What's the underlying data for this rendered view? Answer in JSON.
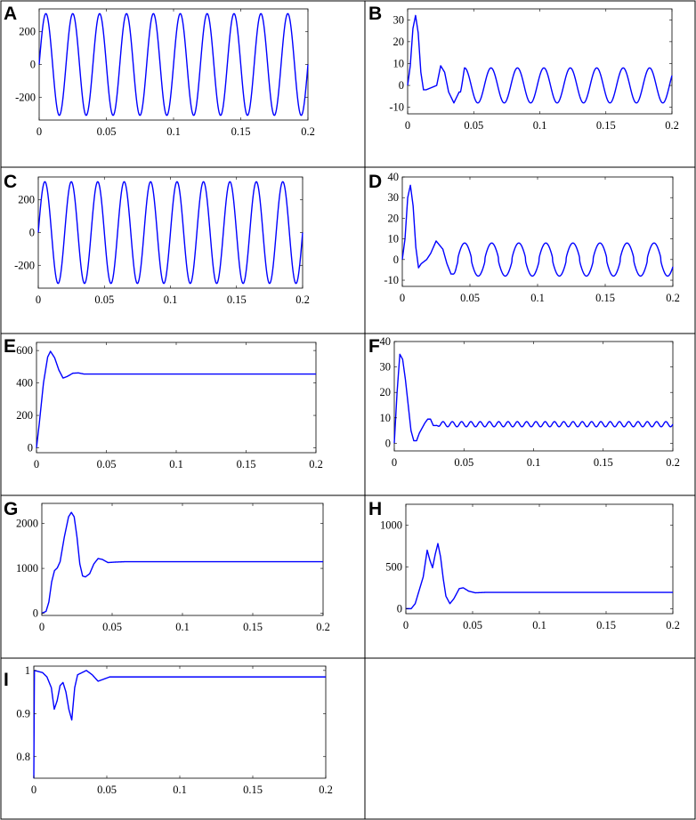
{
  "figure": {
    "line_color": "#0000ff"
  },
  "chart_data": [
    {
      "panel": "A",
      "type": "line",
      "x_ticks": [
        "0",
        "0.05",
        "0.1",
        "0.15",
        "0.2"
      ],
      "x_tick_values": [
        0,
        0.05,
        0.1,
        0.15,
        0.2
      ],
      "y_ticks": [
        "200",
        "0",
        "-200"
      ],
      "y_tick_values": [
        200,
        0,
        -200
      ],
      "xlim": [
        0,
        0.2
      ],
      "ylim": [
        -340,
        340
      ],
      "series": [
        {
          "waveform": "sine",
          "frequency_hz": 50,
          "amplitude": 311,
          "samples_x": [
            0,
            0.005,
            0.015,
            0.2
          ],
          "samples_y": [
            0,
            270,
            -311,
            0
          ]
        }
      ]
    },
    {
      "panel": "B",
      "type": "line",
      "x_ticks": [
        "0",
        "0.05",
        "0.1",
        "0.15",
        "0.2"
      ],
      "x_tick_values": [
        0,
        0.05,
        0.1,
        0.15,
        0.2
      ],
      "y_ticks": [
        "30",
        "20",
        "10",
        "0",
        "-10"
      ],
      "y_tick_values": [
        30,
        20,
        10,
        0,
        -10
      ],
      "xlim": [
        0,
        0.2
      ],
      "ylim": [
        -13,
        35
      ],
      "series": [
        {
          "x": [
            0,
            0.002,
            0.004,
            0.006,
            0.008,
            0.01,
            0.012,
            0.014,
            0.018,
            0.022,
            0.025,
            0.028,
            0.031,
            0.035,
            0.039
          ],
          "y": [
            0,
            9,
            26,
            32,
            24,
            6,
            -2,
            -2,
            -1,
            0,
            9,
            6,
            -3,
            -8,
            -3
          ],
          "steady_state": {
            "from": 0.04,
            "amplitude": 8,
            "frequency_hz": 50
          }
        }
      ]
    },
    {
      "panel": "C",
      "type": "line",
      "x_ticks": [
        "0",
        "0.05",
        "0.1",
        "0.15",
        "0.2"
      ],
      "x_tick_values": [
        0,
        0.05,
        0.1,
        0.15,
        0.2
      ],
      "y_ticks": [
        "200",
        "0",
        "-200"
      ],
      "y_tick_values": [
        200,
        0,
        -200
      ],
      "xlim": [
        0,
        0.2
      ],
      "ylim": [
        -340,
        340
      ],
      "series": [
        {
          "waveform": "sine",
          "frequency_hz": 50,
          "amplitude": 311,
          "samples_x": [
            0,
            0.005,
            0.015,
            0.2
          ],
          "samples_y": [
            0,
            270,
            -311,
            0
          ]
        }
      ]
    },
    {
      "panel": "D",
      "type": "line",
      "x_ticks": [
        "0",
        "0.05",
        "0.1",
        "0.15",
        "0.2"
      ],
      "x_tick_values": [
        0,
        0.05,
        0.1,
        0.15,
        0.2
      ],
      "y_ticks": [
        "40",
        "30",
        "20",
        "10",
        "0",
        "-10"
      ],
      "y_tick_values": [
        40,
        30,
        20,
        10,
        0,
        -10
      ],
      "xlim": [
        0,
        0.2
      ],
      "ylim": [
        -13,
        40
      ],
      "series": [
        {
          "x": [
            0,
            0.002,
            0.004,
            0.006,
            0.008,
            0.01,
            0.012,
            0.014,
            0.018,
            0.021,
            0.025,
            0.03,
            0.033,
            0.036
          ],
          "y": [
            0,
            10,
            30,
            36,
            26,
            6,
            -4,
            -2,
            0,
            3,
            9,
            5,
            -2,
            -7
          ],
          "steady_state": {
            "from": 0.037,
            "amplitude": 8,
            "frequency_hz": 50,
            "waveform": "stepped"
          }
        }
      ]
    },
    {
      "panel": "E",
      "type": "line",
      "x_ticks": [
        "0",
        "0.05",
        "0.1",
        "0.15",
        "0.2"
      ],
      "x_tick_values": [
        0,
        0.05,
        0.1,
        0.15,
        0.2
      ],
      "y_ticks": [
        "600",
        "400",
        "200",
        "0"
      ],
      "y_tick_values": [
        600,
        400,
        200,
        0
      ],
      "xlim": [
        0,
        0.2
      ],
      "ylim": [
        -30,
        650
      ],
      "series": [
        {
          "x": [
            0,
            0.002,
            0.005,
            0.008,
            0.01,
            0.013,
            0.016,
            0.019,
            0.022,
            0.026,
            0.03,
            0.034,
            0.04,
            0.2
          ],
          "y": [
            0,
            150,
            400,
            560,
            595,
            555,
            480,
            430,
            440,
            460,
            462,
            455,
            455,
            455
          ]
        }
      ]
    },
    {
      "panel": "F",
      "type": "line",
      "x_ticks": [
        "0",
        "0.05",
        "0.1",
        "0.15",
        "0.2"
      ],
      "x_tick_values": [
        0,
        0.05,
        0.1,
        0.15,
        0.2
      ],
      "y_ticks": [
        "40",
        "30",
        "20",
        "10",
        "0"
      ],
      "y_tick_values": [
        40,
        30,
        20,
        10,
        0
      ],
      "xlim": [
        0,
        0.2
      ],
      "ylim": [
        -3,
        40
      ],
      "series": [
        {
          "x": [
            0,
            0.002,
            0.004,
            0.006,
            0.008,
            0.01,
            0.012,
            0.014,
            0.016,
            0.018,
            0.02,
            0.022,
            0.024,
            0.026,
            0.028
          ],
          "y": [
            0,
            20,
            35,
            33,
            25,
            15,
            5,
            1,
            1,
            4,
            6,
            8,
            9.5,
            9.5,
            7
          ],
          "steady_state": {
            "from": 0.03,
            "mean": 7.5,
            "ripple": 1,
            "frequency_hz": 150
          }
        }
      ]
    },
    {
      "panel": "G",
      "type": "line",
      "x_ticks": [
        "0",
        "0.05",
        "0.1",
        "0.15",
        "0.2"
      ],
      "x_tick_values": [
        0,
        0.05,
        0.1,
        0.15,
        0.2
      ],
      "y_ticks": [
        "2000",
        "1000",
        "0"
      ],
      "y_tick_values": [
        2000,
        1000,
        0
      ],
      "xlim": [
        0,
        0.2
      ],
      "ylim": [
        -50,
        2450
      ],
      "series": [
        {
          "x": [
            0,
            0.003,
            0.005,
            0.007,
            0.009,
            0.011,
            0.013,
            0.016,
            0.019,
            0.021,
            0.023,
            0.025,
            0.027,
            0.029,
            0.031,
            0.034,
            0.037,
            0.04,
            0.043,
            0.047,
            0.052,
            0.06,
            0.2
          ],
          "y": [
            0,
            40,
            250,
            700,
            950,
            1010,
            1150,
            1700,
            2150,
            2250,
            2150,
            1700,
            1100,
            830,
            810,
            880,
            1100,
            1220,
            1200,
            1130,
            1140,
            1150,
            1150
          ]
        }
      ]
    },
    {
      "panel": "H",
      "type": "line",
      "x_ticks": [
        "0",
        "0.05",
        "0.1",
        "0.15",
        "0.2"
      ],
      "x_tick_values": [
        0,
        0.05,
        0.1,
        0.15,
        0.2
      ],
      "y_ticks": [
        "1000",
        "500",
        "0"
      ],
      "y_tick_values": [
        1000,
        500,
        0
      ],
      "xlim": [
        0,
        0.2
      ],
      "ylim": [
        -60,
        1250
      ],
      "series": [
        {
          "x": [
            0,
            0.004,
            0.007,
            0.01,
            0.013,
            0.016,
            0.018,
            0.02,
            0.022,
            0.024,
            0.026,
            0.028,
            0.03,
            0.033,
            0.036,
            0.04,
            0.043,
            0.047,
            0.052,
            0.06,
            0.2
          ],
          "y": [
            0,
            0,
            60,
            220,
            380,
            700,
            580,
            490,
            650,
            780,
            620,
            360,
            150,
            60,
            120,
            240,
            250,
            210,
            190,
            195,
            195
          ]
        }
      ]
    },
    {
      "panel": "I",
      "type": "line",
      "x_ticks": [
        "0",
        "0.05",
        "0.1",
        "0.15",
        "0.2"
      ],
      "x_tick_values": [
        0,
        0.05,
        0.1,
        0.15,
        0.2
      ],
      "y_ticks": [
        "1",
        "0.9",
        "0.8"
      ],
      "y_tick_values": [
        1,
        0.9,
        0.8
      ],
      "xlim": [
        0,
        0.2
      ],
      "ylim": [
        0.75,
        1.01
      ],
      "series": [
        {
          "x": [
            0,
            0.0004,
            0.006,
            0.009,
            0.012,
            0.014,
            0.016,
            0.018,
            0.02,
            0.022,
            0.024,
            0.026,
            0.028,
            0.03,
            0.033,
            0.036,
            0.04,
            0.044,
            0.048,
            0.052,
            0.06,
            0.2
          ],
          "y": [
            0.75,
            1.0,
            0.995,
            0.985,
            0.96,
            0.91,
            0.93,
            0.965,
            0.972,
            0.95,
            0.91,
            0.885,
            0.96,
            0.99,
            0.995,
            1.0,
            0.99,
            0.975,
            0.98,
            0.985,
            0.985,
            0.985
          ]
        }
      ]
    }
  ]
}
